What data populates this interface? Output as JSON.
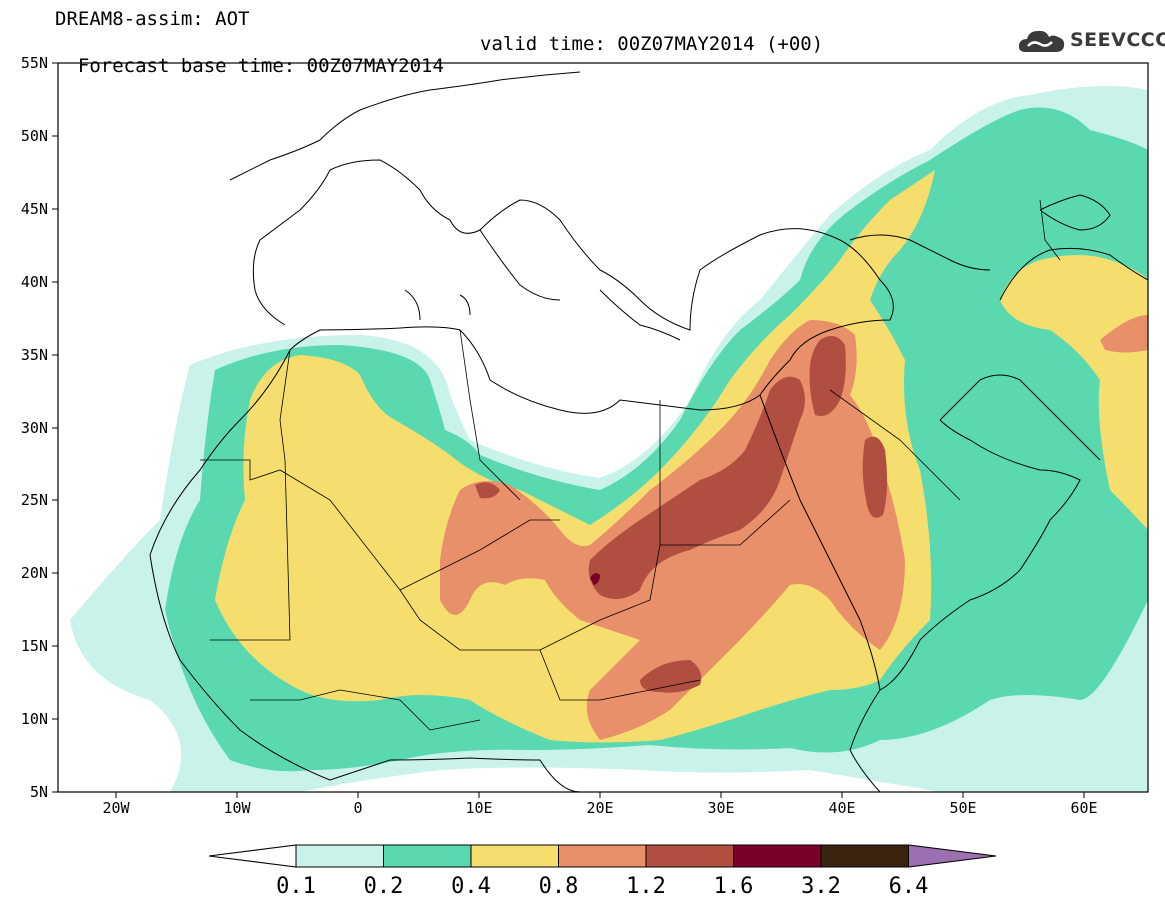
{
  "title": {
    "line1": "DREAM8-assim: AOT",
    "line2": "Forecast base time: 00Z07MAY2014",
    "valid": "valid time: 00Z07MAY2014 (+00)"
  },
  "logo": {
    "text": "SEEVCCC",
    "icon": "cloud-icon"
  },
  "map": {
    "lat_labels": [
      "55N",
      "50N",
      "45N",
      "40N",
      "35N",
      "30N",
      "25N",
      "20N",
      "15N",
      "10N",
      "5N"
    ],
    "lon_labels": [
      "20W",
      "10W",
      "0",
      "10E",
      "20E",
      "30E",
      "40E",
      "50E",
      "60E"
    ],
    "lon_range": [
      -25,
      65
    ],
    "lat_range": [
      5,
      55
    ]
  },
  "colorbar": {
    "labels": [
      "0.1",
      "0.2",
      "0.4",
      "0.8",
      "1.2",
      "1.6",
      "3.2",
      "6.4"
    ],
    "colors": [
      "#c8f2ea",
      "#5ad9b0",
      "#f5de6e",
      "#e8906a",
      "#b04e40",
      "#7a0028",
      "#3a2410",
      "#9c70b0"
    ]
  },
  "palette": {
    "c01": "#c8f2ea",
    "c02": "#5ad9b0",
    "c04": "#f5de6e",
    "c08": "#e8906a",
    "c12": "#b04e40",
    "c16": "#7a0028"
  }
}
